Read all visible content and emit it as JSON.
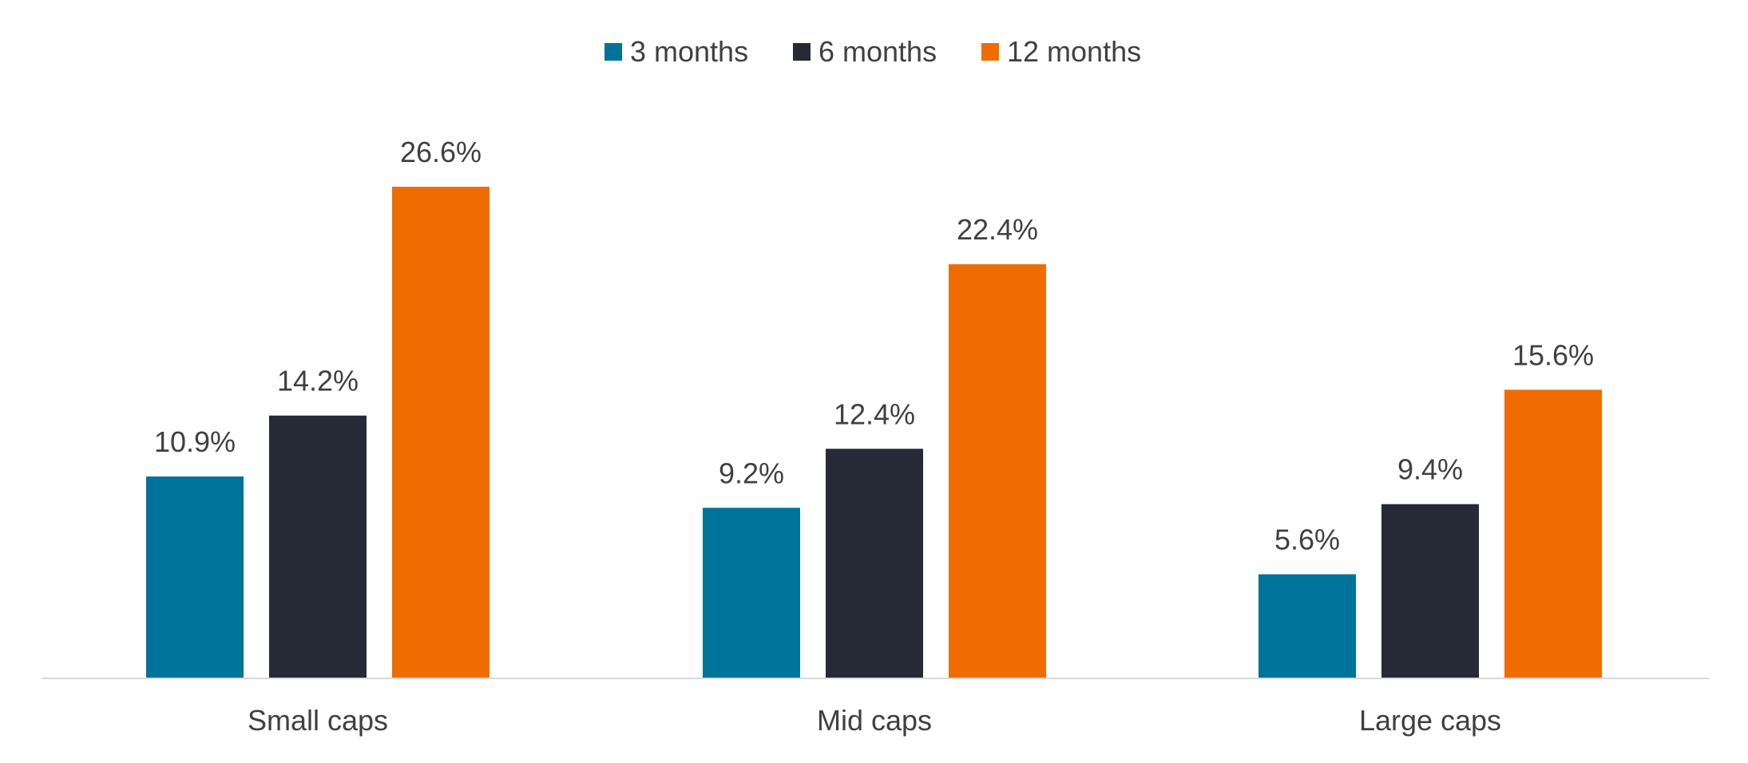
{
  "chart_data": {
    "type": "bar",
    "categories": [
      "Small caps",
      "Mid caps",
      "Large caps"
    ],
    "series": [
      {
        "name": "3 months",
        "values": [
          10.9,
          9.2,
          5.6
        ],
        "labels": [
          "10.9%",
          "9.2%",
          "5.6%"
        ],
        "color": "#00739A"
      },
      {
        "name": "6 months",
        "values": [
          14.2,
          12.4,
          9.4
        ],
        "labels": [
          "14.2%",
          "12.4%",
          "9.4%"
        ],
        "color": "#262A36"
      },
      {
        "name": "12 months",
        "values": [
          26.6,
          22.4,
          15.6
        ],
        "labels": [
          "26.6%",
          "22.4%",
          "15.6%"
        ],
        "color": "#F06C00"
      }
    ],
    "title": "",
    "xlabel": "",
    "ylabel": "",
    "ylim": [
      0,
      30
    ],
    "grid": false,
    "legend_position": "top-center",
    "axis_color": "#D9D9D9"
  }
}
